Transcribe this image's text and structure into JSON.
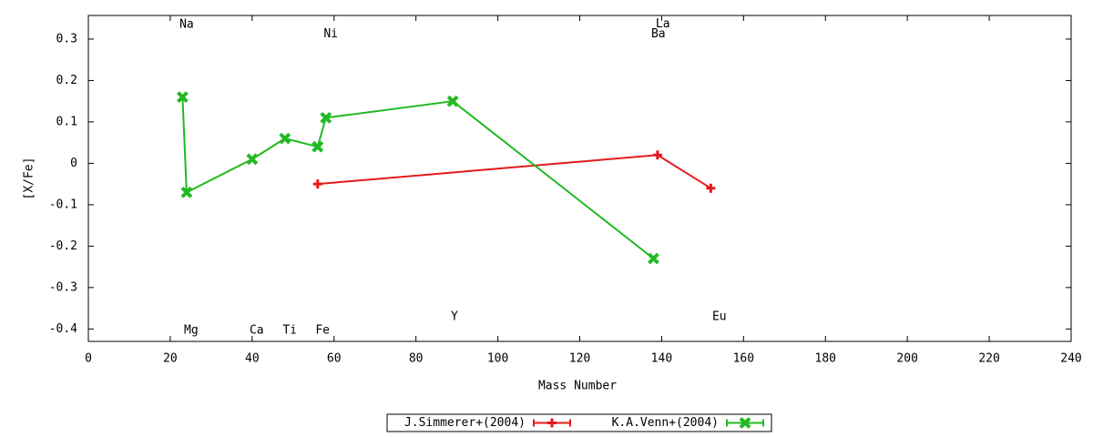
{
  "chart_data": {
    "type": "line",
    "xlabel": "Mass Number",
    "ylabel": "[X/Fe]",
    "xlim": [
      0,
      240
    ],
    "ylim": [
      -0.43,
      0.357
    ],
    "xticks": [
      0,
      20,
      40,
      60,
      80,
      100,
      120,
      140,
      160,
      180,
      200,
      220,
      240
    ],
    "yticks": [
      -0.4,
      -0.3,
      -0.2,
      -0.1,
      0,
      0.1,
      0.2,
      0.3
    ],
    "legend": "bottom",
    "series": [
      {
        "name": "J.Simmerer+(2004)",
        "color": "#e41a1c",
        "marker": "plus",
        "x": [
          56,
          139,
          152
        ],
        "values": [
          -0.05,
          0.02,
          -0.06
        ]
      },
      {
        "name": "K.A.Venn+(2004)",
        "color": "#22b922",
        "marker": "cross",
        "x": [
          23,
          24,
          40,
          48,
          56,
          58,
          89,
          138
        ],
        "values": [
          0.16,
          -0.07,
          0.01,
          0.06,
          0.04,
          0.11,
          0.15,
          -0.23
        ]
      }
    ],
    "annotations": [
      {
        "text": "Na",
        "x": 24,
        "y": 0.335
      },
      {
        "text": "Ni",
        "x": 59.2,
        "y": 0.312
      },
      {
        "text": "La",
        "x": 140.3,
        "y": 0.336
      },
      {
        "text": "Ba",
        "x": 139.2,
        "y": 0.312
      },
      {
        "text": "Mg",
        "x": 25.1,
        "y": -0.404
      },
      {
        "text": "Ca",
        "x": 41.1,
        "y": -0.404
      },
      {
        "text": "Ti",
        "x": 49.2,
        "y": -0.404
      },
      {
        "text": "Fe",
        "x": 57.2,
        "y": -0.404
      },
      {
        "text": "Y",
        "x": 89.4,
        "y": -0.371
      },
      {
        "text": "Eu",
        "x": 154.1,
        "y": -0.371
      }
    ]
  }
}
